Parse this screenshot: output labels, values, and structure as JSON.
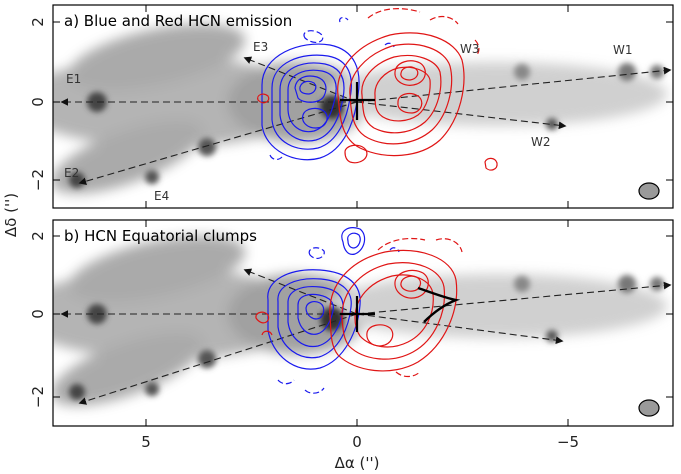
{
  "chart_data": [
    {
      "type": "contour",
      "title": "a) Blue and Red HCN emission",
      "xlabel": "Δα ('')",
      "ylabel": "Δδ ('')",
      "xlim": [
        7,
        -7.5
      ],
      "ylim": [
        -2.8,
        2.5
      ],
      "x_ticks": [
        {
          "value": 5,
          "label": "5"
        },
        {
          "value": 0,
          "label": "0"
        },
        {
          "value": -5,
          "label": "−5"
        }
      ],
      "y_ticks": [
        {
          "value": 2,
          "label": "2"
        },
        {
          "value": 0,
          "label": "0"
        },
        {
          "value": -2,
          "label": "−2"
        }
      ],
      "series": [
        {
          "color": "#1a1aee",
          "peaks": [
            {
              "x": 1.4,
              "y": 0.3
            },
            {
              "x": 0.6,
              "y": -0.4
            }
          ]
        },
        {
          "color": "#e01515",
          "peaks": [
            {
              "x": -1.3,
              "y": 0.7
            },
            {
              "x": -1.4,
              "y": -0.1
            }
          ]
        }
      ],
      "features": [
        {
          "label": "E1",
          "x": 6.5,
          "y": 0.4
        },
        {
          "label": "E2",
          "x": 6.5,
          "y": -1.7
        },
        {
          "label": "E3",
          "x": 2.5,
          "y": 1.0
        },
        {
          "label": "E4",
          "x": 4.7,
          "y": -2.1
        },
        {
          "label": "W1",
          "x": -6.3,
          "y": 1.0
        },
        {
          "label": "W2",
          "x": -4.5,
          "y": -0.9
        },
        {
          "label": "W3",
          "x": -2.8,
          "y": 1.0
        }
      ],
      "beam": {
        "x": -6.7,
        "y": -2.2
      }
    },
    {
      "type": "contour",
      "title": "b) HCN Equatorial clumps",
      "xlabel": "Δα ('')",
      "ylabel": "Δδ ('')",
      "xlim": [
        7,
        -7.5
      ],
      "ylim": [
        -2.8,
        2.5
      ],
      "x_ticks": [
        {
          "value": 5,
          "label": "5"
        },
        {
          "value": 0,
          "label": "0"
        },
        {
          "value": -5,
          "label": "−5"
        }
      ],
      "y_ticks": [
        {
          "value": 2,
          "label": "2"
        },
        {
          "value": 0,
          "label": "0"
        },
        {
          "value": -2,
          "label": "−2"
        }
      ],
      "series": [
        {
          "color": "#1a1aee",
          "peaks": [
            {
              "x": 1.0,
              "y": 0.1
            },
            {
              "x": 0.0,
              "y": 1.7
            }
          ]
        },
        {
          "color": "#e01515",
          "peaks": [
            {
              "x": -1.3,
              "y": 0.9
            },
            {
              "x": -1.0,
              "y": -0.5
            }
          ]
        }
      ],
      "beam": {
        "x": -6.7,
        "y": -2.2
      }
    }
  ]
}
